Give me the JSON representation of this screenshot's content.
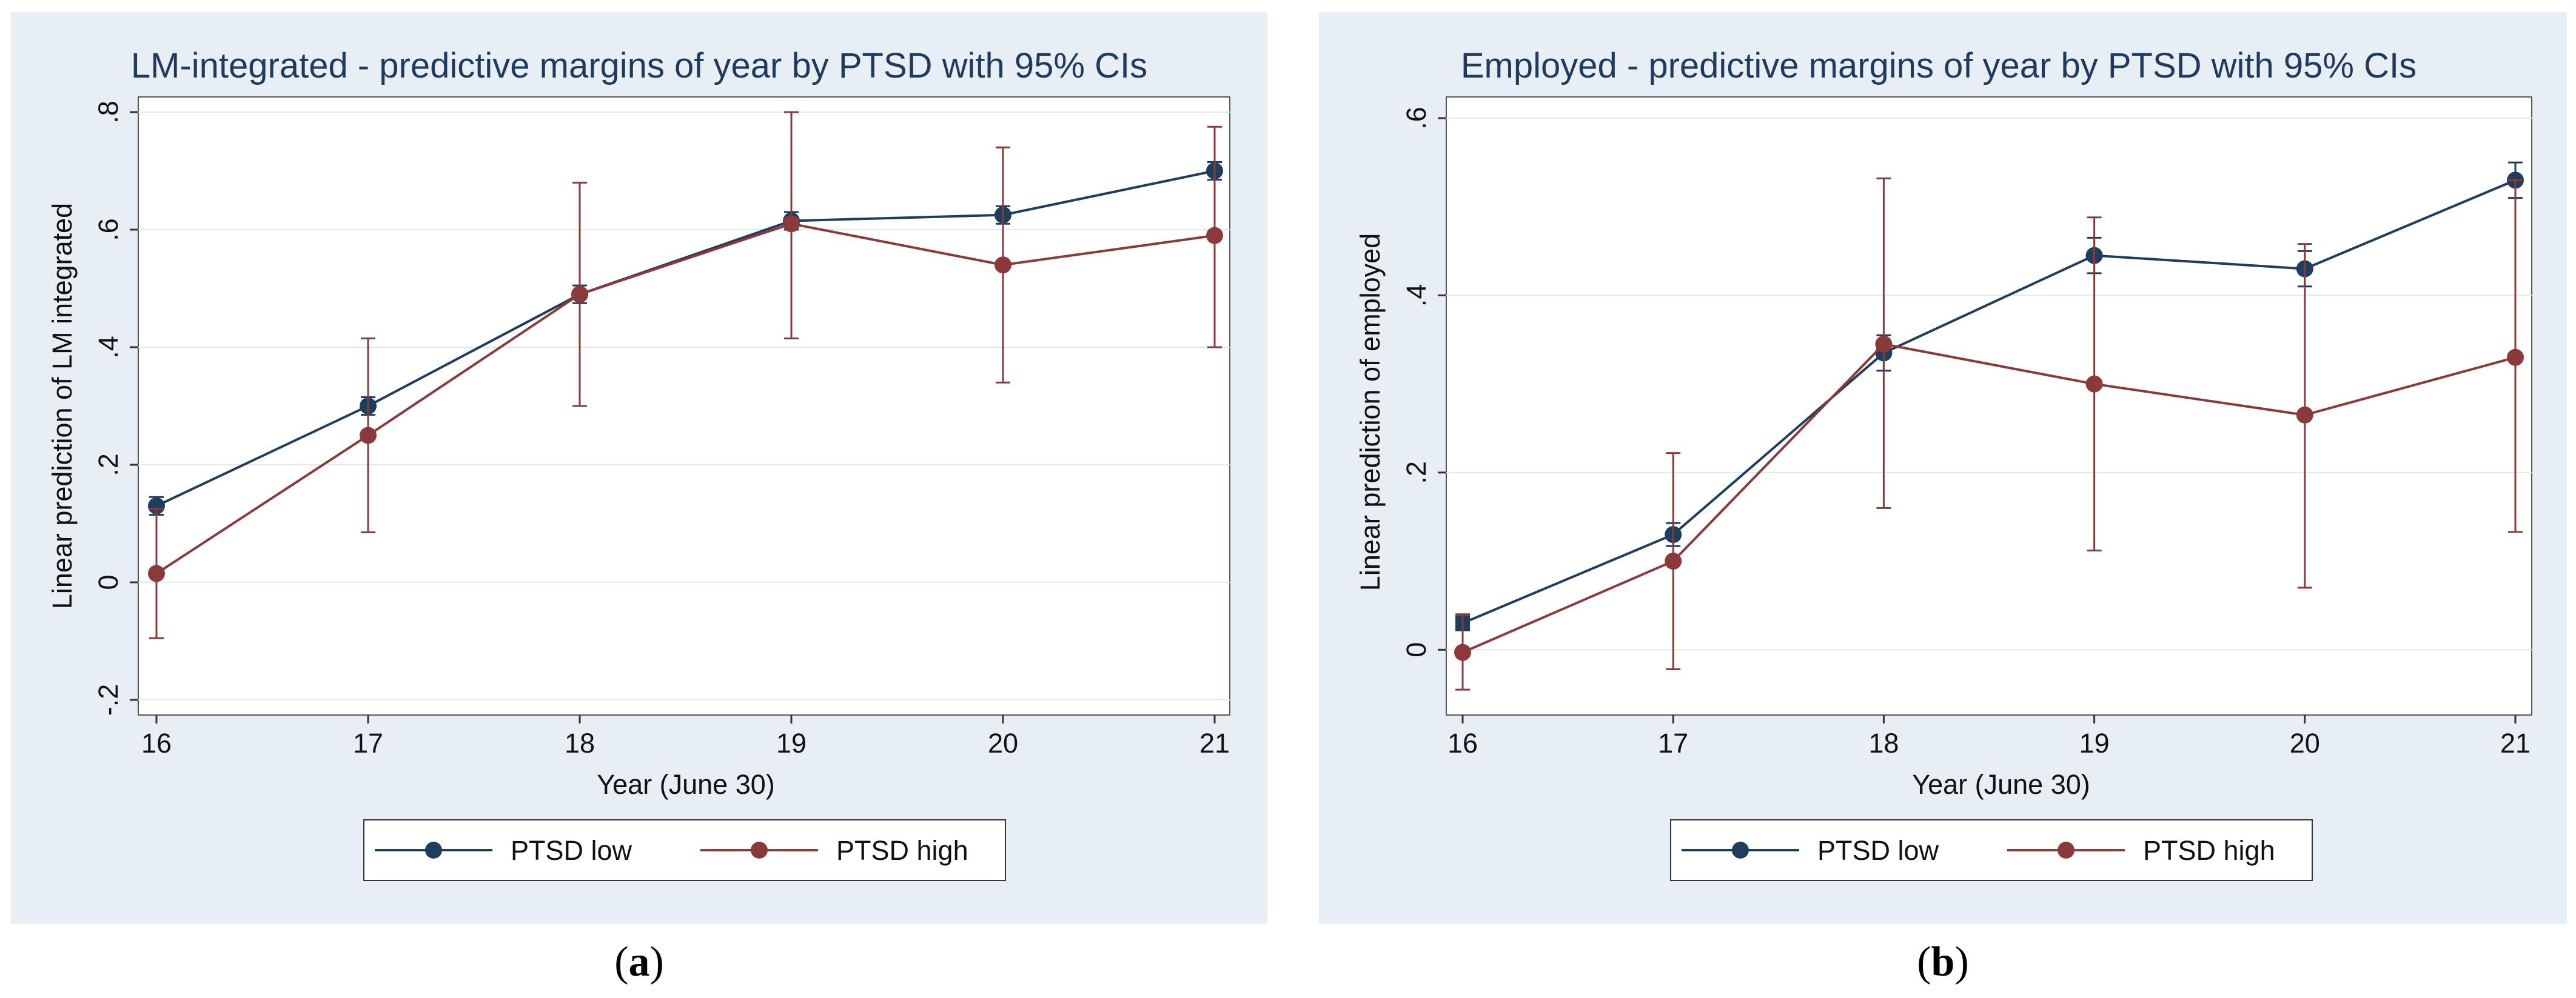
{
  "chart_data": [
    {
      "type": "line",
      "panel_label_open": "(",
      "panel_label_letter": "a",
      "panel_label_close": ")",
      "title": "LM-integrated - predictive margins of year by PTSD with 95% CIs",
      "xlabel": "Year (June 30)",
      "ylabel": "Linear prediction of LM integrated",
      "x": [
        16,
        17,
        18,
        19,
        20,
        21
      ],
      "xlim": [
        16,
        21
      ],
      "ylim": [
        -0.2,
        0.8
      ],
      "yticks": [
        -0.2,
        0,
        0.2,
        0.4,
        0.6,
        0.8
      ],
      "ytick_labels": [
        "-.2",
        "0",
        ".2",
        ".4",
        ".6",
        ".8"
      ],
      "grid": true,
      "legend_position": "bottom",
      "series": [
        {
          "name": "PTSD low",
          "color": "#1f3d5c",
          "marker": "circle",
          "values": [
            0.13,
            0.3,
            0.49,
            0.615,
            0.625,
            0.7
          ],
          "ci_low": [
            0.115,
            0.285,
            0.475,
            0.6,
            0.61,
            0.685
          ],
          "ci_high": [
            0.145,
            0.315,
            0.505,
            0.63,
            0.64,
            0.715
          ]
        },
        {
          "name": "PTSD high",
          "color": "#8b3a3a",
          "marker": "circle",
          "values": [
            0.015,
            0.25,
            0.49,
            0.61,
            0.54,
            0.59
          ],
          "ci_low": [
            -0.095,
            0.085,
            0.3,
            0.415,
            0.34,
            0.4
          ],
          "ci_high": [
            0.125,
            0.415,
            0.68,
            0.8,
            0.74,
            0.775
          ]
        }
      ]
    },
    {
      "type": "line",
      "panel_label_open": "(",
      "panel_label_letter": "b",
      "panel_label_close": ")",
      "title": "Employed - predictive  margins of year by PTSD with 95% CIs",
      "xlabel": "Year (June 30)",
      "ylabel": "Linear prediction of employed",
      "x": [
        16,
        17,
        18,
        19,
        20,
        21
      ],
      "xlim": [
        16,
        21
      ],
      "ylim": [
        -0.06,
        0.6
      ],
      "yticks": [
        0,
        0.2,
        0.4,
        0.6
      ],
      "ytick_labels": [
        "0",
        ".2",
        ".4",
        ".6"
      ],
      "grid": true,
      "legend_position": "bottom",
      "series": [
        {
          "name": "PTSD low",
          "color": "#1f3d5c",
          "marker": "square-first",
          "values": [
            0.03,
            0.13,
            0.335,
            0.445,
            0.43,
            0.53
          ],
          "ci_low": [
            0.022,
            0.117,
            0.315,
            0.425,
            0.41,
            0.51
          ],
          "ci_high": [
            0.038,
            0.143,
            0.355,
            0.465,
            0.45,
            0.55
          ]
        },
        {
          "name": "PTSD high",
          "color": "#8b3a3a",
          "marker": "circle",
          "values": [
            -0.003,
            0.1,
            0.345,
            0.3,
            0.265,
            0.33
          ],
          "ci_low": [
            -0.045,
            -0.022,
            0.16,
            0.112,
            0.07,
            0.133
          ],
          "ci_high": [
            0.04,
            0.222,
            0.532,
            0.488,
            0.458,
            0.53
          ]
        }
      ]
    }
  ]
}
